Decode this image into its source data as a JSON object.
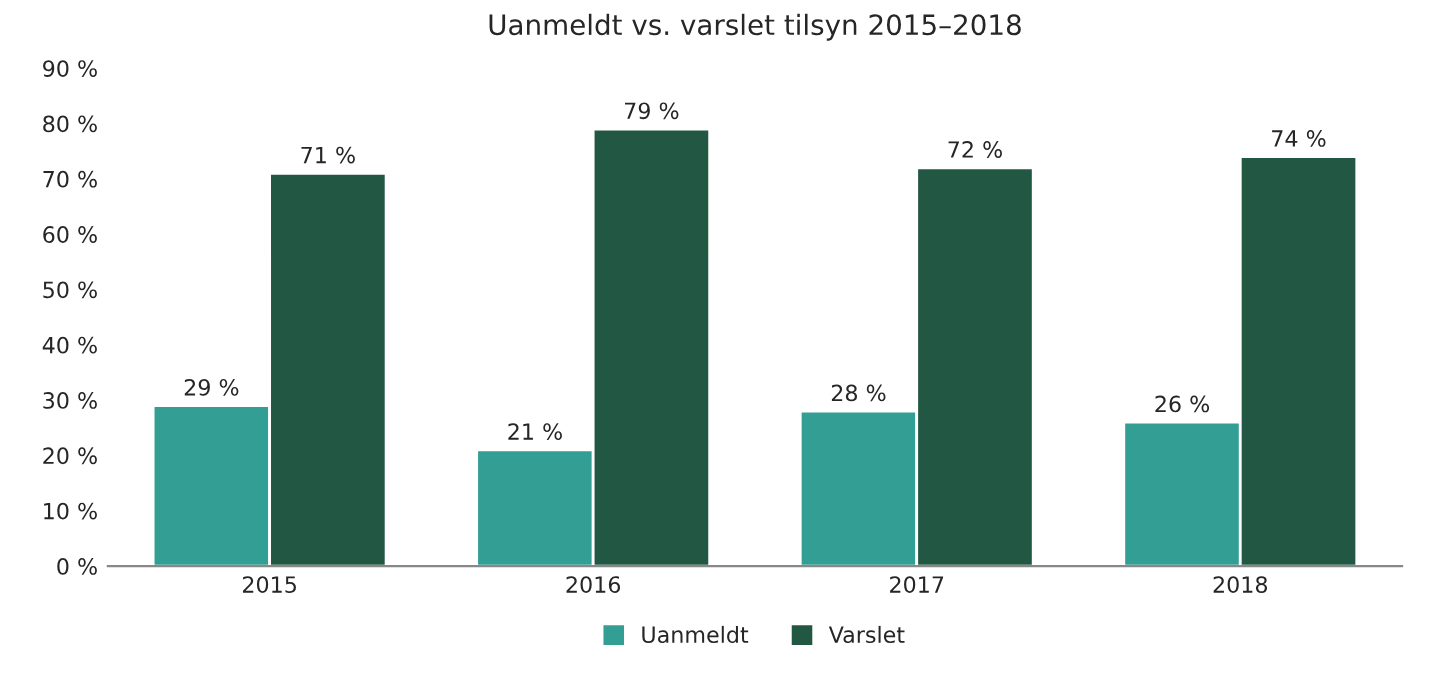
{
  "chart_data": {
    "type": "bar",
    "title": "Uanmeldt vs. varslet tilsyn 2015–2018",
    "categories": [
      "2015",
      "2016",
      "2017",
      "2018"
    ],
    "series": [
      {
        "name": "Uanmeldt",
        "color": "#339e93",
        "values": [
          29,
          21,
          28,
          26
        ],
        "value_labels": [
          "29 %",
          "21 %",
          "28 %",
          "26 %"
        ]
      },
      {
        "name": "Varslet",
        "color": "#225843",
        "values": [
          71,
          79,
          72,
          74
        ],
        "value_labels": [
          "71 %",
          "79 %",
          "72 %",
          "74 %"
        ]
      }
    ],
    "ylim": [
      0,
      90
    ],
    "yticks": [
      {
        "value": 0,
        "label": "0 %"
      },
      {
        "value": 10,
        "label": "10 %"
      },
      {
        "value": 20,
        "label": "20 %"
      },
      {
        "value": 30,
        "label": "30 %"
      },
      {
        "value": 40,
        "label": "40 %"
      },
      {
        "value": 50,
        "label": "50 %"
      },
      {
        "value": 60,
        "label": "60 %"
      },
      {
        "value": 70,
        "label": "70 %"
      },
      {
        "value": 80,
        "label": "80 %"
      },
      {
        "value": 90,
        "label": "90 %"
      }
    ],
    "legend": "bottom"
  }
}
